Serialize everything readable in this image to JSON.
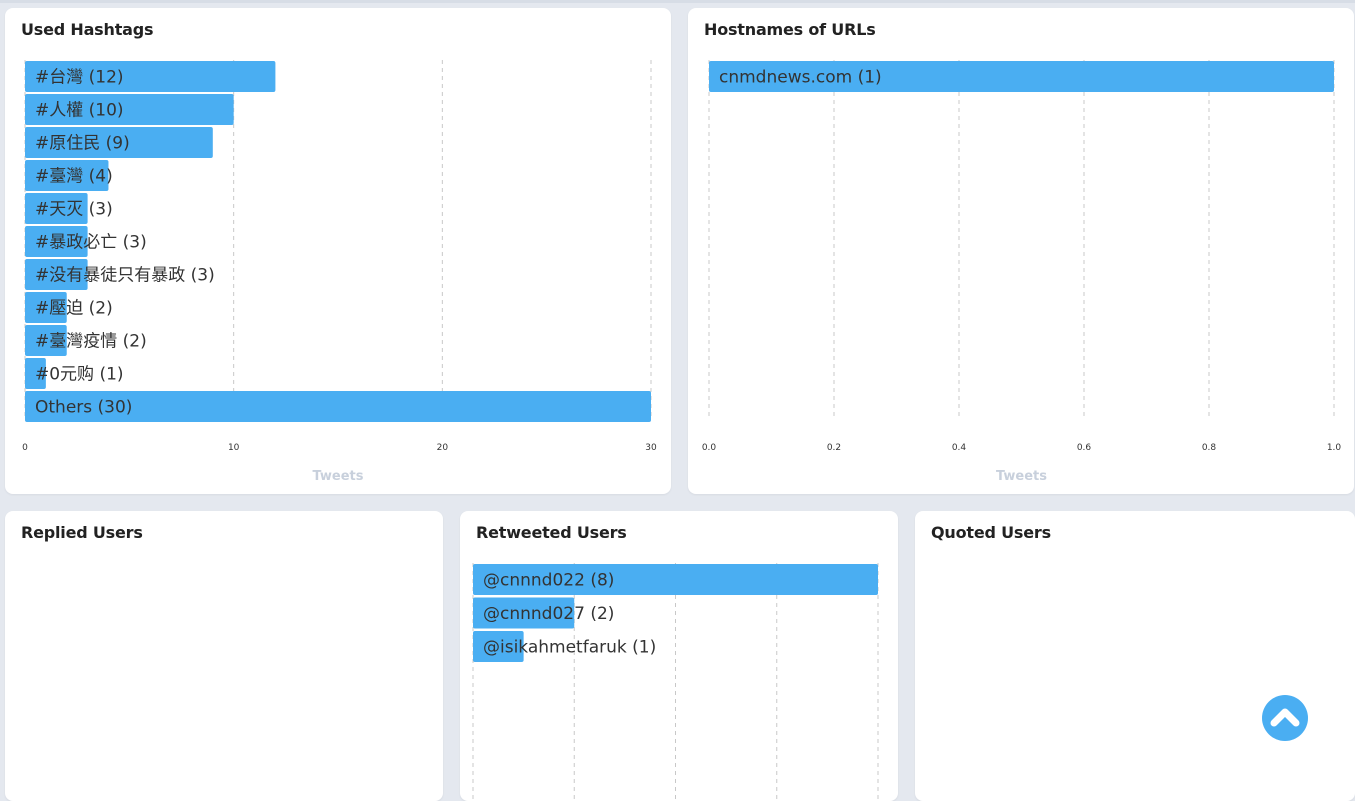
{
  "colors": {
    "bar": "#4aaef2",
    "grid": "#c8c8c8",
    "axis_label": "#c8d0dc",
    "text": "#333333"
  },
  "panels": {
    "hashtags": {
      "title": "Used Hashtags",
      "chart_data": {
        "type": "bar",
        "orientation": "horizontal",
        "categories": [
          "#台灣 (12)",
          "#人權 (10)",
          "#原住民 (9)",
          "#臺灣 (4)",
          "#天灭 (3)",
          "#暴政必亡 (3)",
          "#没有暴徒只有暴政 (3)",
          "#壓迫 (2)",
          "#臺灣疫情 (2)",
          "#0元购 (1)",
          "Others (30)"
        ],
        "values": [
          12,
          10,
          9,
          4,
          3,
          3,
          3,
          2,
          2,
          1,
          30
        ],
        "xlim": [
          0,
          30
        ],
        "xticks": [
          "0",
          "10",
          "20",
          "30"
        ],
        "xlabel": "Tweets",
        "grid": true
      }
    },
    "hostnames": {
      "title": "Hostnames of URLs",
      "chart_data": {
        "type": "bar",
        "orientation": "horizontal",
        "categories": [
          "cnmdnews.com (1)"
        ],
        "values": [
          1
        ],
        "xlim": [
          0,
          1
        ],
        "xticks": [
          "0.0",
          "0.2",
          "0.4",
          "0.6",
          "0.8",
          "1.0"
        ],
        "xlabel": "Tweets",
        "grid": true
      }
    },
    "replied": {
      "title": "Replied Users"
    },
    "retweeted": {
      "title": "Retweeted Users",
      "chart_data": {
        "type": "bar",
        "orientation": "horizontal",
        "categories": [
          "@cnnnd022 (8)",
          "@cnnnd027 (2)",
          "@isikahmetfaruk (1)"
        ],
        "values": [
          8,
          2,
          1
        ],
        "xlim": [
          0,
          8
        ],
        "grid": true
      }
    },
    "quoted": {
      "title": "Quoted Users"
    }
  },
  "scroll_top_button": {
    "icon": "chevron-up-icon"
  }
}
